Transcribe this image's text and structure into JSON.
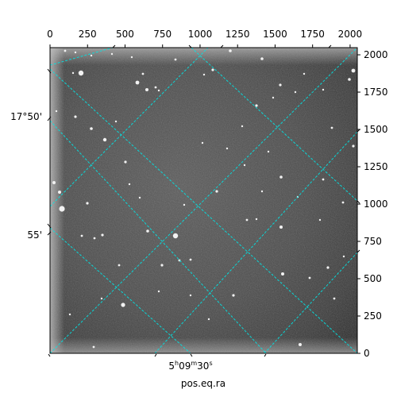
{
  "chart_data": {
    "type": "image",
    "title": "",
    "xlabel": "pos.eq.ra",
    "ylabel": "",
    "pixel_axes": {
      "x_range": [
        0,
        2048
      ],
      "y_range": [
        0,
        2048
      ],
      "x_ticks": [
        0,
        250,
        500,
        750,
        1000,
        1250,
        1500,
        1750,
        2000
      ],
      "y_ticks": [
        0,
        250,
        500,
        750,
        1000,
        1250,
        1500,
        1750,
        2000
      ]
    },
    "world_axes": {
      "dec_tick_labels": [
        "17°50'",
        "55'"
      ],
      "ra_tick_label": {
        "base": "5",
        "h": "h",
        "mid": "09",
        "m": "m",
        "sec": "30",
        "s": "s"
      }
    },
    "grid": true,
    "grid_color": "#00e5e5",
    "image_colormap": "grayscale",
    "frame_color": "#000000"
  }
}
